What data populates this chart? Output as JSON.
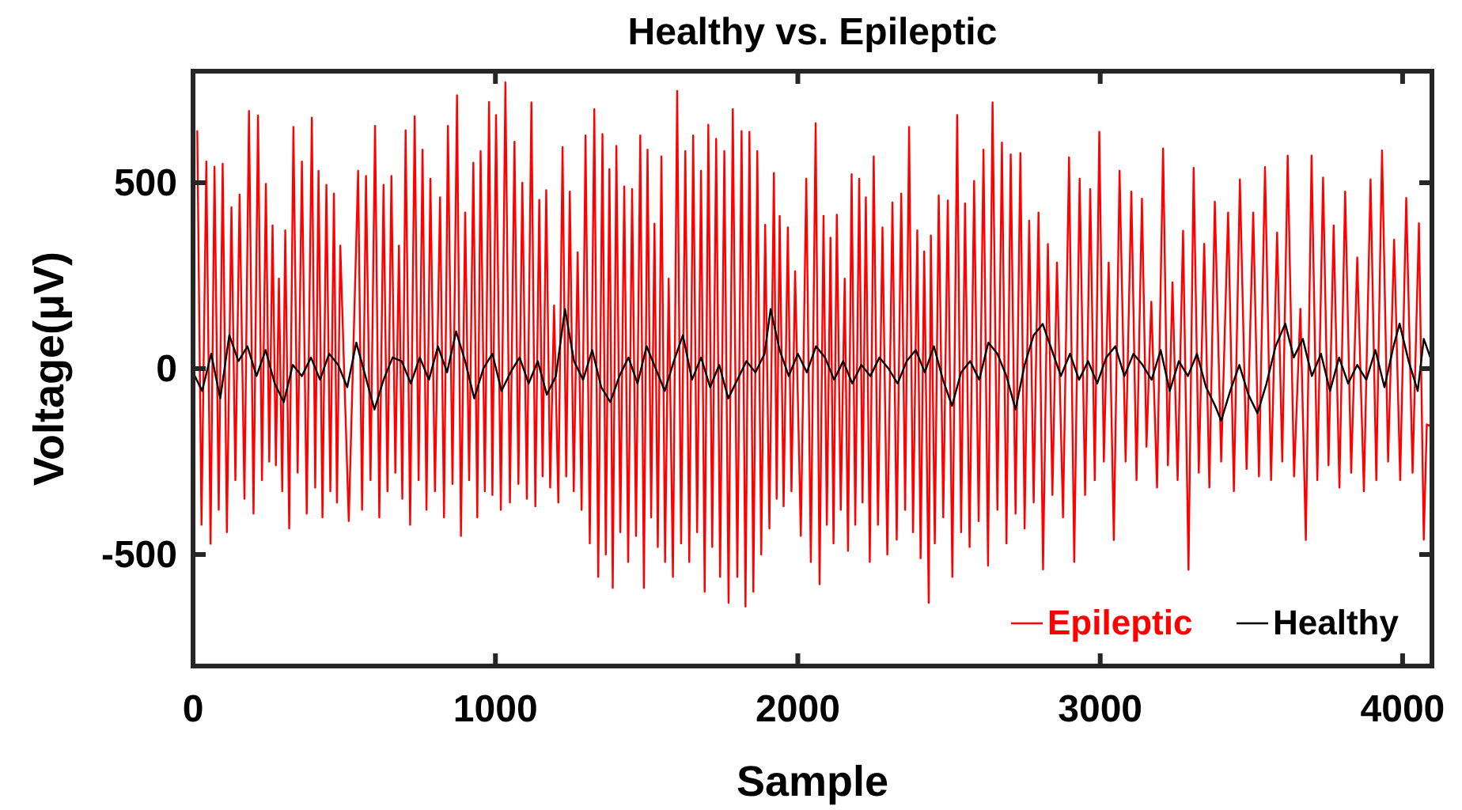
{
  "chart_data": {
    "type": "line",
    "title": "Healthy vs. Epileptic",
    "xlabel": "Sample",
    "ylabel": "Voltage(μV)",
    "xlim": [
      0,
      4097
    ],
    "xticks": [
      0,
      1000,
      2000,
      3000,
      4000
    ],
    "ylim": [
      -800,
      800
    ],
    "yticks": [
      -500,
      0,
      500
    ],
    "grid": false,
    "legend": "bottom right",
    "marker": "none",
    "line_style": "solid",
    "series": [
      {
        "name": "Epileptic",
        "color": "#ff0000",
        "x": [
          14,
          28,
          44,
          58,
          71,
          85,
          98,
          112,
          127,
          140,
          154,
          170,
          185,
          200,
          215,
          228,
          241,
          252,
          263,
          274,
          284,
          295,
          305,
          318,
          332,
          346,
          360,
          376,
          393,
          404,
          415,
          428,
          441,
          454,
          466,
          476,
          487,
          515,
          546,
          559,
          572,
          587,
          602,
          616,
          630,
          643,
          656,
          669,
          681,
          692,
          703,
          718,
          733,
          746,
          759,
          772,
          785,
          800,
          817,
          830,
          843,
          858,
          873,
          886,
          900,
          913,
          927,
          940,
          951,
          965,
          979,
          990,
          1002,
          1018,
          1033,
          1048,
          1063,
          1076,
          1089,
          1104,
          1119,
          1132,
          1145,
          1156,
          1168,
          1181,
          1194,
          1208,
          1222,
          1234,
          1246,
          1259,
          1272,
          1285,
          1298,
          1312,
          1327,
          1340,
          1354,
          1365,
          1377,
          1388,
          1400,
          1413,
          1426,
          1439,
          1452,
          1465,
          1479,
          1491,
          1503,
          1515,
          1526,
          1537,
          1549,
          1561,
          1573,
          1587,
          1601,
          1614,
          1628,
          1641,
          1654,
          1667,
          1680,
          1692,
          1704,
          1717,
          1730,
          1743,
          1757,
          1771,
          1785,
          1800,
          1814,
          1827,
          1840,
          1853,
          1866,
          1879,
          1892,
          1906,
          1921,
          1930,
          1940,
          1953,
          1967,
          1979,
          1991,
          2010,
          2028,
          2043,
          2059,
          2072,
          2085,
          2096,
          2108,
          2118,
          2129,
          2142,
          2155,
          2166,
          2178,
          2190,
          2203,
          2214,
          2225,
          2238,
          2251,
          2265,
          2280,
          2296,
          2313,
          2327,
          2342,
          2355,
          2368,
          2381,
          2395,
          2406,
          2418,
          2433,
          2440,
          2453,
          2466,
          2481,
          2496,
          2511,
          2527,
          2540,
          2553,
          2568,
          2583,
          2598,
          2614,
          2629,
          2644,
          2660,
          2675,
          2690,
          2704,
          2720,
          2736,
          2750,
          2765,
          2780,
          2796,
          2811,
          2827,
          2842,
          2857,
          2877,
          2897,
          2914,
          2932,
          2950,
          2967,
          2982,
          2997,
          3012,
          3028,
          3045,
          3064,
          3084,
          3103,
          3120,
          3138,
          3153,
          3169,
          3188,
          3208,
          3224,
          3239,
          3256,
          3274,
          3292,
          3309,
          3326,
          3344,
          3361,
          3379,
          3400,
          3423,
          3442,
          3462,
          3484,
          3506,
          3525,
          3545,
          3565,
          3585,
          3602,
          3620,
          3641,
          3662,
          3680,
          3699,
          3718,
          3737,
          3755,
          3772,
          3791,
          3810,
          3830,
          3850,
          3872,
          3894,
          3913,
          3932,
          3952,
          3972,
          3992,
          4012,
          4033,
          4054,
          4070,
          4080,
          4096
        ],
        "values": [
          639,
          -420,
          557,
          -471,
          543,
          -380,
          551,
          -440,
          434,
          -300,
          468,
          -350,
          693,
          -390,
          681,
          -300,
          497,
          -250,
          385,
          -260,
          242,
          -330,
          372,
          -430,
          650,
          -280,
          557,
          -390,
          675,
          -320,
          532,
          -400,
          494,
          -330,
          471,
          -360,
          331,
          -410,
          532,
          -380,
          518,
          -300,
          653,
          -400,
          494,
          -330,
          518,
          -280,
          331,
          -350,
          641,
          -420,
          679,
          -300,
          589,
          -380,
          511,
          -330,
          461,
          -400,
          653,
          -310,
          735,
          -450,
          420,
          -300,
          554,
          -400,
          585,
          -330,
          717,
          -340,
          682,
          -380,
          770,
          -360,
          610,
          -310,
          500,
          -350,
          716,
          -370,
          454,
          -290,
          480,
          -320,
          170,
          -360,
          596,
          -290,
          476,
          -330,
          313,
          -380,
          627,
          -470,
          698,
          -560,
          631,
          -500,
          537,
          -590,
          599,
          -440,
          490,
          -520,
          483,
          -450,
          627,
          -590,
          589,
          -400,
          390,
          -480,
          571,
          -520,
          242,
          -560,
          747,
          -470,
          585,
          -520,
          627,
          -440,
          532,
          -600,
          656,
          -480,
          618,
          -560,
          585,
          -630,
          698,
          -560,
          639,
          -640,
          637,
          -600,
          585,
          -500,
          387,
          -430,
          526,
          -350,
          411,
          -370,
          380,
          -330,
          262,
          -450,
          511,
          -520,
          660,
          -580,
          411,
          -420,
          352,
          -470,
          414,
          -380,
          242,
          -490,
          523,
          -420,
          511,
          -360,
          461,
          -520,
          571,
          -420,
          380,
          -500,
          447,
          -460,
          471,
          -380,
          650,
          -440,
          372,
          -510,
          315,
          -630,
          358,
          -470,
          466,
          -400,
          452,
          -560,
          682,
          -440,
          444,
          -480,
          505,
          -410,
          589,
          -530,
          716,
          -380,
          608,
          -470,
          576,
          -390,
          580,
          -430,
          398,
          -360,
          420,
          -540,
          335,
          -340,
          285,
          -400,
          568,
          -520,
          511,
          -340,
          483,
          -300,
          637,
          -250,
          285,
          -461,
          532,
          -250,
          476,
          -300,
          457,
          -210,
          180,
          -320,
          592,
          -260,
          232,
          -300,
          371,
          -541,
          540,
          -280,
          336,
          -320,
          449,
          -250,
          420,
          -330,
          509,
          -270,
          420,
          -290,
          542,
          -300,
          366,
          -250,
          573,
          -290,
          161,
          -461,
          573,
          -300,
          514,
          -260,
          385,
          -320,
          476,
          -280,
          299,
          -330,
          509,
          -300,
          587,
          -250,
          347,
          -300,
          459,
          -280,
          391,
          -460,
          -150,
          -155
        ]
      },
      {
        "name": "Healthy",
        "color": "#000000",
        "x": [
          0,
          30,
          60,
          90,
          120,
          150,
          180,
          210,
          240,
          270,
          300,
          330,
          360,
          390,
          420,
          450,
          480,
          510,
          540,
          570,
          600,
          630,
          660,
          690,
          720,
          750,
          780,
          810,
          840,
          870,
          900,
          930,
          960,
          990,
          1020,
          1050,
          1080,
          1110,
          1140,
          1170,
          1200,
          1230,
          1260,
          1290,
          1320,
          1350,
          1380,
          1410,
          1440,
          1470,
          1500,
          1530,
          1560,
          1590,
          1620,
          1650,
          1680,
          1710,
          1740,
          1770,
          1800,
          1830,
          1860,
          1890,
          1910,
          1940,
          1970,
          2000,
          2030,
          2060,
          2090,
          2120,
          2150,
          2180,
          2210,
          2240,
          2270,
          2300,
          2330,
          2360,
          2390,
          2420,
          2450,
          2480,
          2510,
          2540,
          2570,
          2600,
          2630,
          2660,
          2690,
          2720,
          2750,
          2780,
          2810,
          2840,
          2870,
          2900,
          2930,
          2960,
          2990,
          3020,
          3050,
          3080,
          3110,
          3140,
          3170,
          3200,
          3230,
          3260,
          3290,
          3320,
          3350,
          3380,
          3400,
          3430,
          3460,
          3490,
          3520,
          3550,
          3580,
          3612,
          3640,
          3670,
          3700,
          3730,
          3760,
          3790,
          3820,
          3850,
          3880,
          3910,
          3940,
          3970,
          3990,
          4020,
          4050,
          4070,
          4096
        ],
        "values": [
          -10,
          -60,
          40,
          -80,
          90,
          20,
          60,
          -20,
          50,
          -40,
          -90,
          10,
          -20,
          30,
          -30,
          40,
          10,
          -50,
          70,
          -20,
          -110,
          -30,
          30,
          20,
          -40,
          30,
          -30,
          60,
          -10,
          100,
          20,
          -80,
          0,
          40,
          -60,
          -10,
          30,
          -40,
          20,
          -70,
          -20,
          160,
          20,
          -30,
          50,
          -50,
          -90,
          -20,
          30,
          -40,
          60,
          0,
          -60,
          20,
          90,
          -30,
          30,
          -50,
          10,
          -80,
          -30,
          20,
          -10,
          40,
          160,
          50,
          -20,
          40,
          -10,
          60,
          30,
          -30,
          20,
          -40,
          10,
          -20,
          30,
          0,
          -40,
          20,
          50,
          -10,
          60,
          -30,
          -100,
          -10,
          20,
          -30,
          70,
          40,
          -20,
          -110,
          10,
          90,
          120,
          50,
          -20,
          40,
          -30,
          20,
          -40,
          30,
          60,
          -20,
          40,
          10,
          -30,
          50,
          -60,
          20,
          -20,
          40,
          -50,
          -100,
          -140,
          -60,
          10,
          -70,
          -120,
          -40,
          60,
          121,
          30,
          80,
          -20,
          40,
          -60,
          30,
          -40,
          10,
          -30,
          50,
          -50,
          60,
          121,
          20,
          -60,
          80,
          20
        ]
      }
    ]
  }
}
